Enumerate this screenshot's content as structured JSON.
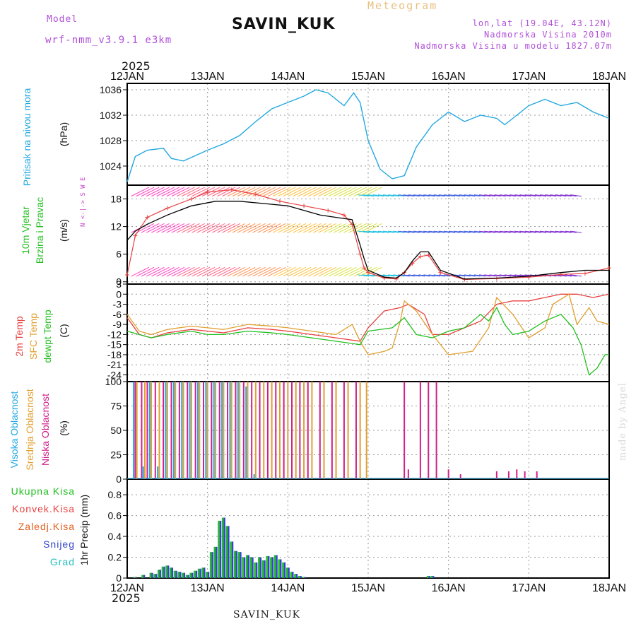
{
  "header": {
    "model_label": "Model",
    "model_name": "wrf-nmm_v3.9.1 e3km",
    "station": "SAVIN_KUK",
    "meteogram": "Meteogram",
    "lonlat": "lon,lat (19.04E, 43.12N)",
    "altitude": "Nadmorska Visina 2010m",
    "model_altitude": "Nadmorska Visina u modelu 1827.07m",
    "year_top": "2025",
    "year_bottom": "2025"
  },
  "footer": {
    "station": "SAVIN_KUK",
    "credit": "made by Angel"
  },
  "colors": {
    "pressure": "#22a8e0",
    "wind_speed": "#000000",
    "gust": "#e84040",
    "t2m": "#e84040",
    "tsfc": "#e0a030",
    "dewpt": "#22c020",
    "cloud_high": "#22a8e0",
    "cloud_mid": "#e0a030",
    "cloud_low": "#d0208a",
    "precip_total": "#22c020",
    "precip_conv": "#e84040",
    "precip_snow": "#3344cc",
    "wind_n": "#cc44cc"
  },
  "chart_data": [
    {
      "type": "line",
      "panel": "pressure",
      "ylabel_1": "Pritisak na nivou mora",
      "ylabel_2": "(hPa)",
      "ylim": [
        1021,
        1037
      ],
      "yticks": [
        "1036",
        "1032",
        "1028",
        "1024"
      ],
      "yticks_values": [
        1036,
        1032,
        1028,
        1024
      ],
      "categories": [
        "12JAN",
        "13JAN",
        "14JAN",
        "15JAN",
        "16JAN",
        "17JAN",
        "18JAN"
      ],
      "x": [
        0,
        0.1,
        0.25,
        0.45,
        0.55,
        0.7,
        1.0,
        1.2,
        1.4,
        1.6,
        1.8,
        2.0,
        2.2,
        2.35,
        2.5,
        2.7,
        2.82,
        2.9,
        3.0,
        3.15,
        3.3,
        3.45,
        3.6,
        3.8,
        4.0,
        4.2,
        4.4,
        4.6,
        4.7,
        4.9,
        5.0,
        5.2,
        5.4,
        5.6,
        5.8,
        6.0
      ],
      "values": [
        1021.5,
        1025.5,
        1026.5,
        1026.8,
        1025.2,
        1024.8,
        1026.5,
        1027.5,
        1028.8,
        1031.0,
        1033.0,
        1034.0,
        1035.0,
        1036.0,
        1035.5,
        1033.5,
        1035.5,
        1034.0,
        1028.0,
        1023.5,
        1022.0,
        1022.5,
        1027.0,
        1030.5,
        1032.5,
        1031.0,
        1032.0,
        1031.5,
        1030.5,
        1032.5,
        1033.5,
        1034.5,
        1033.5,
        1034.0,
        1032.5,
        1031.5
      ]
    },
    {
      "type": "line",
      "panel": "wind",
      "ylabel_1": "10m Vjetar",
      "ylabel_2": "Brzina i Pravac",
      "ylabel_3": "(m/s)",
      "compass": "N <-|-> S  W  E",
      "ylim": [
        -0.5,
        21
      ],
      "yticks": [
        "18",
        "12",
        "6",
        "0"
      ],
      "yticks_values": [
        18,
        12,
        6,
        0
      ],
      "series": [
        {
          "name": "wind_speed",
          "x": [
            0,
            0.1,
            0.25,
            0.5,
            0.8,
            1.1,
            1.4,
            1.7,
            2.0,
            2.2,
            2.4,
            2.6,
            2.8,
            2.9,
            2.95,
            3.0,
            3.2,
            3.35,
            3.45,
            3.55,
            3.65,
            3.75,
            3.9,
            4.2,
            4.6,
            5.0,
            5.4,
            5.7,
            6.0
          ],
          "values": [
            9.0,
            11.0,
            12.5,
            14.5,
            16.5,
            17.5,
            17.5,
            17.0,
            16.5,
            15.5,
            14.5,
            14.0,
            13.5,
            8.0,
            5.0,
            2.5,
            1.0,
            0.8,
            2.0,
            4.5,
            6.5,
            6.5,
            2.5,
            0.6,
            0.8,
            1.2,
            2.0,
            2.5,
            2.5
          ]
        },
        {
          "name": "gust",
          "x": [
            0,
            0.1,
            0.25,
            0.5,
            0.8,
            1.0,
            1.3,
            1.6,
            1.9,
            2.2,
            2.5,
            2.7,
            2.8,
            2.9,
            2.95,
            3.0,
            3.2,
            3.35,
            3.45,
            3.55,
            3.65,
            3.75,
            3.9,
            4.2,
            4.6,
            5.0,
            5.4,
            5.7,
            6.0
          ],
          "values": [
            1.5,
            10.0,
            14.0,
            16.0,
            18.0,
            19.5,
            20.0,
            19.0,
            17.5,
            16.5,
            15.5,
            14.5,
            12.5,
            6.0,
            3.0,
            2.0,
            0.8,
            0.6,
            2.0,
            4.0,
            5.5,
            5.8,
            2.0,
            0.5,
            0.7,
            1.0,
            1.6,
            1.8,
            3.0
          ]
        }
      ]
    },
    {
      "type": "line",
      "panel": "temperature",
      "ylabel_1": "2m Temp",
      "ylabel_2": "SFC Temp",
      "ylabel_3": "dewpt Temp",
      "ylabel_4": "(C)",
      "ylim": [
        -26,
        3
      ],
      "yticks": [
        "3",
        "0",
        "-3",
        "-6",
        "-9",
        "-12",
        "-15",
        "-18",
        "-21",
        "-24"
      ],
      "yticks_values": [
        3,
        0,
        -3,
        -6,
        -9,
        -12,
        -15,
        -18,
        -21,
        -24
      ],
      "series": [
        {
          "name": "t2m",
          "x": [
            0,
            0.15,
            0.3,
            0.5,
            0.8,
            1.0,
            1.2,
            1.5,
            1.8,
            2.0,
            2.3,
            2.6,
            2.9,
            3.0,
            3.2,
            3.4,
            3.5,
            3.7,
            3.8,
            4.0,
            4.2,
            4.4,
            4.6,
            4.8,
            5.0,
            5.2,
            5.4,
            5.6,
            5.8,
            6.0
          ],
          "values": [
            -7,
            -12,
            -13,
            -11.5,
            -10.5,
            -11,
            -11.5,
            -10,
            -10.5,
            -11,
            -12,
            -13,
            -14,
            -10,
            -5,
            -4,
            -3,
            -6,
            -12,
            -12,
            -10,
            -8,
            -3,
            -2,
            -2,
            -1,
            0,
            0,
            -1,
            0
          ]
        },
        {
          "name": "tsfc",
          "x": [
            0,
            0.15,
            0.3,
            0.5,
            0.8,
            1.0,
            1.2,
            1.5,
            1.8,
            2.0,
            2.3,
            2.6,
            2.8,
            2.9,
            3.0,
            3.2,
            3.3,
            3.4,
            3.45,
            3.6,
            3.8,
            4.0,
            4.3,
            4.5,
            4.6,
            4.8,
            5.0,
            5.2,
            5.3,
            5.5,
            5.6,
            5.75,
            5.85,
            6.0
          ],
          "values": [
            -6,
            -11,
            -12,
            -10.5,
            -9.5,
            -10,
            -10.5,
            -9,
            -9.5,
            -10,
            -11,
            -12,
            -9,
            -14,
            -18,
            -17,
            -16,
            -8,
            -2,
            -5,
            -12,
            -18,
            -17,
            -10,
            -1,
            -6,
            -13,
            -10,
            -3,
            0,
            -9,
            -4,
            -8,
            -9
          ]
        },
        {
          "name": "dewpt",
          "x": [
            0,
            0.15,
            0.3,
            0.5,
            0.8,
            1.0,
            1.2,
            1.5,
            1.8,
            2.0,
            2.3,
            2.6,
            2.9,
            3.0,
            3.3,
            3.45,
            3.6,
            3.8,
            4.0,
            4.2,
            4.4,
            4.5,
            4.6,
            4.7,
            4.8,
            5.0,
            5.2,
            5.4,
            5.55,
            5.65,
            5.75,
            5.85,
            5.95,
            6.0
          ],
          "values": [
            -11,
            -12,
            -13,
            -12,
            -11,
            -12,
            -12,
            -11,
            -11.5,
            -12,
            -13,
            -14,
            -15,
            -11,
            -10,
            -7,
            -12,
            -13,
            -11,
            -10,
            -6,
            -8,
            -4,
            -9,
            -12,
            -11,
            -8,
            -6,
            -10,
            -15,
            -24,
            -22,
            -18,
            -18
          ]
        }
      ]
    },
    {
      "type": "bar",
      "panel": "clouds",
      "ylabel_1": "Visoka Oblacnost",
      "ylabel_2": "Srednja Oblacnost",
      "ylabel_3": "Niska Oblacnost",
      "ylabel_4": "(%)",
      "ylim": [
        0,
        100
      ],
      "yticks": [
        "100",
        "75",
        "50",
        "25",
        "0"
      ],
      "yticks_values": [
        100,
        75,
        50,
        25,
        0
      ],
      "series": [
        {
          "name": "low",
          "x": [
            0.1,
            0.18,
            0.25,
            0.35,
            0.45,
            0.55,
            0.65,
            0.75,
            0.85,
            0.95,
            1.05,
            1.15,
            1.25,
            1.35,
            1.45,
            1.55,
            1.65,
            1.75,
            1.85,
            1.95,
            2.05,
            2.15,
            2.25,
            2.4,
            2.55,
            2.7,
            2.85,
            3.45,
            3.5,
            3.65,
            3.75,
            3.85,
            4.0,
            4.15,
            4.6,
            4.75,
            4.85,
            4.95,
            5.1
          ],
          "values": [
            100,
            100,
            100,
            100,
            100,
            100,
            100,
            100,
            100,
            100,
            100,
            100,
            100,
            100,
            100,
            100,
            100,
            100,
            100,
            100,
            100,
            100,
            100,
            100,
            100,
            100,
            100,
            100,
            10,
            100,
            100,
            100,
            10,
            5,
            8,
            8,
            10,
            8,
            8
          ]
        },
        {
          "name": "mid",
          "x": [
            0.12,
            0.22,
            0.3,
            0.4,
            0.5,
            0.6,
            0.7,
            0.8,
            0.9,
            1.0,
            1.1,
            1.2,
            1.3,
            1.4,
            1.5,
            1.6,
            1.7,
            1.8,
            1.9,
            2.0,
            2.1,
            2.2,
            2.3,
            2.45,
            2.6,
            2.75,
            2.9,
            2.98
          ],
          "values": [
            100,
            100,
            100,
            100,
            100,
            100,
            100,
            100,
            100,
            100,
            100,
            100,
            100,
            100,
            100,
            100,
            100,
            100,
            100,
            100,
            100,
            100,
            100,
            100,
            100,
            100,
            100,
            100
          ]
        },
        {
          "name": "high",
          "x": [
            0.08,
            0.2,
            0.28,
            0.38,
            0.48,
            0.58,
            0.68,
            0.78,
            0.88,
            0.98,
            1.08,
            1.18,
            1.28,
            1.38,
            1.48,
            1.58
          ],
          "values": [
            100,
            13,
            100,
            13,
            100,
            100,
            100,
            100,
            100,
            100,
            100,
            100,
            100,
            100,
            95,
            5
          ]
        }
      ]
    },
    {
      "type": "bar",
      "panel": "precip",
      "ylabel_1": "1hr Precip (mm)",
      "legend": [
        "Ukupna Kisa",
        "Konvek.Kisa",
        "Zaledj.Kisa",
        "Snijeg",
        "Grad"
      ],
      "ylim": [
        0,
        0.95
      ],
      "yticks": [
        "0.8",
        "0.6",
        "0.4",
        "0.2",
        "0"
      ],
      "yticks_values": [
        0.8,
        0.6,
        0.4,
        0.2,
        0
      ],
      "xticks_bottom": [
        "12JAN",
        "13JAN",
        "14JAN",
        "15JAN",
        "16JAN",
        "17JAN",
        "18JAN"
      ],
      "series": [
        {
          "name": "total",
          "x": [
            0.1,
            0.2,
            0.3,
            0.35,
            0.4,
            0.45,
            0.5,
            0.55,
            0.6,
            0.65,
            0.7,
            0.75,
            0.8,
            0.85,
            0.9,
            0.95,
            1.0,
            1.05,
            1.1,
            1.15,
            1.2,
            1.25,
            1.3,
            1.35,
            1.4,
            1.45,
            1.5,
            1.55,
            1.6,
            1.65,
            1.7,
            1.75,
            1.8,
            1.85,
            1.9,
            1.95,
            2.0,
            2.05,
            2.1,
            2.15,
            2.2,
            3.75,
            3.8
          ],
          "values": [
            0.01,
            0.03,
            0.05,
            0.04,
            0.08,
            0.11,
            0.12,
            0.1,
            0.07,
            0.06,
            0.05,
            0.03,
            0.05,
            0.07,
            0.09,
            0.1,
            0.06,
            0.25,
            0.3,
            0.55,
            0.58,
            0.5,
            0.35,
            0.26,
            0.25,
            0.2,
            0.22,
            0.2,
            0.15,
            0.2,
            0.17,
            0.21,
            0.2,
            0.22,
            0.18,
            0.15,
            0.1,
            0.06,
            0.04,
            0.02,
            0.01,
            0.02,
            0.02
          ]
        }
      ]
    }
  ]
}
